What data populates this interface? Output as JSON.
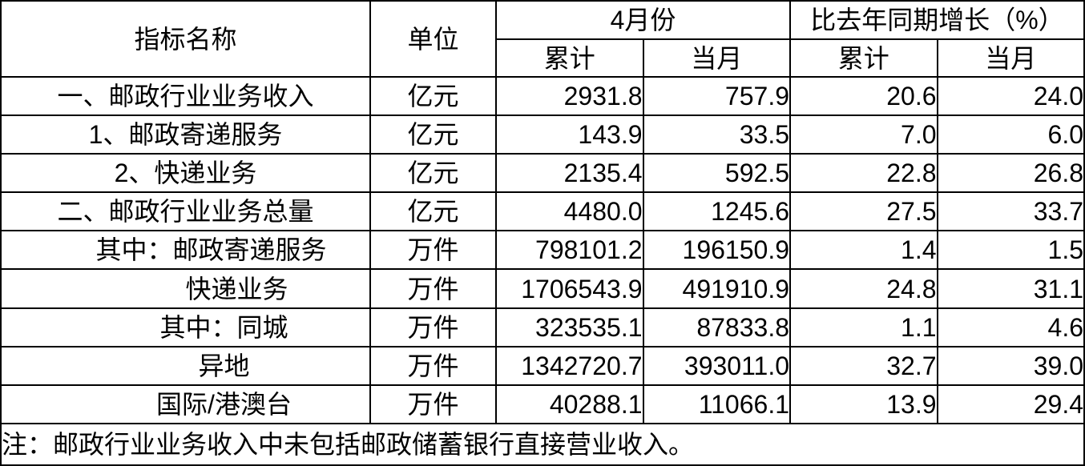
{
  "table": {
    "header": {
      "indicator": "指标名称",
      "unit": "单位",
      "group_april": "4月份",
      "group_growth": "比去年同期增长（%）",
      "april_cumulative": "累计",
      "april_month": "当月",
      "growth_cumulative": "累计",
      "growth_month": "当月"
    },
    "rows": [
      {
        "name": "一、邮政行业业务收入",
        "unit": "亿元",
        "april_cum": "2931.8",
        "april_mon": "757.9",
        "growth_cum": "20.6",
        "growth_mon": "24.0"
      },
      {
        "name": "1、邮政寄递服务",
        "unit": "亿元",
        "april_cum": "143.9",
        "april_mon": "33.5",
        "growth_cum": "7.0",
        "growth_mon": "6.0"
      },
      {
        "name": "2、快递业务",
        "unit": "亿元",
        "april_cum": "2135.4",
        "april_mon": "592.5",
        "growth_cum": "22.8",
        "growth_mon": "26.8"
      },
      {
        "name": "二、邮政行业业务总量",
        "unit": "亿元",
        "april_cum": "4480.0",
        "april_mon": "1245.6",
        "growth_cum": "27.5",
        "growth_mon": "33.7"
      },
      {
        "name": "　　其中：邮政寄递服务",
        "unit": "万件",
        "april_cum": "798101.2",
        "april_mon": "196150.9",
        "growth_cum": "1.4",
        "growth_mon": "1.5"
      },
      {
        "name": "　　　　快递业务",
        "unit": "万件",
        "april_cum": "1706543.9",
        "april_mon": "491910.9",
        "growth_cum": "24.8",
        "growth_mon": "31.1"
      },
      {
        "name": "　　　其中：同城",
        "unit": "万件",
        "april_cum": "323535.1",
        "april_mon": "87833.8",
        "growth_cum": "1.1",
        "growth_mon": "4.6"
      },
      {
        "name": "　　　异地",
        "unit": "万件",
        "april_cum": "1342720.7",
        "april_mon": "393011.0",
        "growth_cum": "32.7",
        "growth_mon": "39.0"
      },
      {
        "name": "　　　国际/港澳台",
        "unit": "万件",
        "april_cum": "40288.1",
        "april_mon": "11066.1",
        "growth_cum": "13.9",
        "growth_mon": "29.4"
      }
    ],
    "note": "注：邮政行业业务收入中未包括邮政储蓄银行直接营业收入。"
  },
  "colors": {
    "border": "#000000",
    "text": "#000000",
    "background": "#ffffff"
  }
}
